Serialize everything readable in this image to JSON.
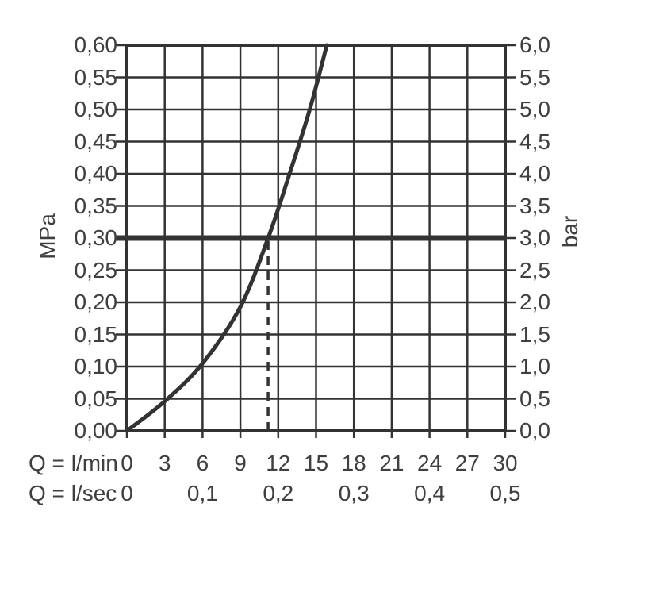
{
  "chart_data": {
    "type": "line",
    "title": "",
    "grid": true,
    "x": {
      "caption_lmin": "Q = l/min",
      "caption_lsec": "Q = l/sec",
      "min": 0,
      "max": 30,
      "step_lmin": 3,
      "tick_labels_lmin": [
        "0",
        "3",
        "6",
        "9",
        "12",
        "15",
        "18",
        "21",
        "24",
        "27",
        "30"
      ],
      "lsec_ticks": [
        {
          "lmin": 0,
          "label": "0"
        },
        {
          "lmin": 6,
          "label": "0,1"
        },
        {
          "lmin": 12,
          "label": "0,2"
        },
        {
          "lmin": 18,
          "label": "0,3"
        },
        {
          "lmin": 24,
          "label": "0,4"
        },
        {
          "lmin": 30,
          "label": "0,5"
        }
      ]
    },
    "y_left": {
      "unit": "MPa",
      "min": 0,
      "max": 0.6,
      "step": 0.05,
      "tick_labels_top_to_bottom": [
        "0,60",
        "0,55",
        "0,50",
        "0,45",
        "0,40",
        "0,35",
        "0,30",
        "0,25",
        "0,20",
        "0,15",
        "0,10",
        "0,05",
        "0,00"
      ]
    },
    "y_right": {
      "unit": "bar",
      "min": 0,
      "max": 6,
      "step": 0.5,
      "tick_labels_top_to_bottom": [
        "6,0",
        "5,5",
        "5,0",
        "4,5",
        "4,0",
        "3,5",
        "3,0",
        "2,5",
        "2,0",
        "1,5",
        "1,0",
        "0,5",
        "0,0"
      ]
    },
    "series": [
      {
        "name": "pressure-vs-flow-curve",
        "points_lmin_mpa": [
          [
            0,
            0
          ],
          [
            3,
            0.046
          ],
          [
            6,
            0.105
          ],
          [
            9,
            0.193
          ],
          [
            11.2,
            0.3
          ],
          [
            12.9,
            0.4
          ],
          [
            14.5,
            0.5
          ],
          [
            15.85,
            0.6
          ]
        ]
      }
    ],
    "annotations": {
      "bold_horizontal_line": {
        "mpa": 0.3,
        "bar": 3.0
      },
      "dashed_vertical_line": {
        "lmin": 11.2,
        "from_mpa": 0.0,
        "to_mpa": 0.3
      }
    },
    "colors": {
      "line": "#333333",
      "text": "#3f3f3f",
      "background": "#ffffff"
    }
  }
}
